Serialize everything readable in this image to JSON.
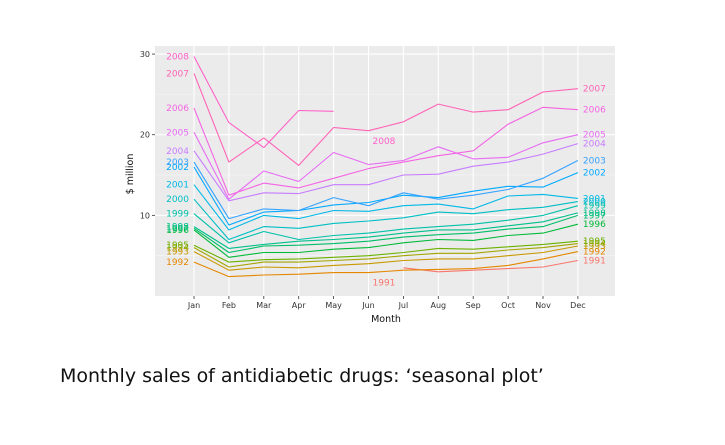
{
  "caption": "Monthly sales of antidiabetic drugs: ‘seasonal plot’",
  "chart_data": {
    "type": "line",
    "title": "",
    "xlabel": "Month",
    "ylabel": "$ million",
    "categories": [
      "Jan",
      "Feb",
      "Mar",
      "Apr",
      "May",
      "Jun",
      "Jul",
      "Aug",
      "Sep",
      "Oct",
      "Nov",
      "Dec"
    ],
    "ylim": [
      0,
      31
    ],
    "yticks": [
      10,
      20,
      30
    ],
    "grid": true,
    "background": "#ebebeb",
    "gridline_color": "#ffffff",
    "series": [
      {
        "name": "1991",
        "color": "#F8766D",
        "values": [
          null,
          null,
          null,
          null,
          null,
          null,
          3.5,
          3.0,
          3.2,
          3.4,
          3.6,
          4.4
        ],
        "left_label": "",
        "right_label": "1991",
        "mid_label": "1991",
        "mid_label_x": "Jun",
        "mid_label_y": 1.7
      },
      {
        "name": "1992",
        "color": "#E58700",
        "values": [
          4.2,
          2.4,
          2.6,
          2.7,
          2.9,
          2.9,
          3.2,
          3.3,
          3.4,
          3.8,
          4.6,
          5.5
        ],
        "left_label": "1992",
        "right_label": "1992"
      },
      {
        "name": "1993",
        "color": "#C99800",
        "values": [
          5.5,
          3.2,
          3.6,
          3.5,
          3.8,
          4.0,
          4.4,
          4.6,
          4.6,
          5.0,
          5.4,
          6.2
        ],
        "left_label": "1993",
        "right_label": "1993"
      },
      {
        "name": "1994",
        "color": "#A3A500",
        "values": [
          6.0,
          3.6,
          4.2,
          4.2,
          4.4,
          4.6,
          5.0,
          5.3,
          5.3,
          5.7,
          6.0,
          6.5
        ],
        "left_label": "1994",
        "right_label": "1994"
      },
      {
        "name": "1995",
        "color": "#6BB100",
        "values": [
          6.3,
          4.2,
          4.5,
          4.6,
          4.8,
          5.0,
          5.4,
          5.9,
          5.8,
          6.1,
          6.4,
          6.8
        ],
        "left_label": "1995",
        "right_label": "1995"
      },
      {
        "name": "1996",
        "color": "#00BA38",
        "values": [
          8.2,
          4.8,
          5.4,
          5.4,
          5.8,
          6.0,
          6.6,
          7.0,
          6.9,
          7.5,
          7.8,
          8.9
        ],
        "left_label": "1996",
        "right_label": "1996"
      },
      {
        "name": "1997",
        "color": "#00BE67",
        "values": [
          8.4,
          5.4,
          6.2,
          6.3,
          6.5,
          6.8,
          7.3,
          7.6,
          7.8,
          8.3,
          8.6,
          10.0
        ],
        "left_label": "1997",
        "right_label": "1997"
      },
      {
        "name": "1998",
        "color": "#00C08B",
        "values": [
          8.6,
          5.9,
          6.4,
          6.8,
          7.0,
          7.3,
          7.8,
          8.2,
          8.2,
          8.7,
          9.2,
          10.3
        ],
        "left_label": "1998",
        "right_label": "1998"
      },
      {
        "name": "1999",
        "color": "#00C1AA",
        "values": [
          10.2,
          6.6,
          8.0,
          7.0,
          7.5,
          7.8,
          8.3,
          8.6,
          8.9,
          9.4,
          10.0,
          11.2
        ],
        "left_label": "1999",
        "right_label": "1999"
      },
      {
        "name": "2000",
        "color": "#00BFC4",
        "values": [
          12.0,
          7.0,
          8.6,
          8.4,
          9.0,
          9.3,
          9.7,
          10.4,
          10.2,
          10.7,
          11.0,
          11.7
        ],
        "left_label": "2000",
        "right_label": "2000"
      },
      {
        "name": "2001",
        "color": "#00B8E7",
        "values": [
          13.8,
          8.2,
          10.0,
          9.6,
          10.6,
          10.5,
          11.2,
          11.4,
          10.8,
          12.4,
          12.6,
          12.1
        ],
        "left_label": "2001",
        "right_label": "2001"
      },
      {
        "name": "2002",
        "color": "#00A9FF",
        "values": [
          16.0,
          8.8,
          10.4,
          10.6,
          11.3,
          11.6,
          12.5,
          12.2,
          13.0,
          13.6,
          13.5,
          15.3
        ],
        "left_label": "2002",
        "right_label": "2002"
      },
      {
        "name": "2003",
        "color": "#35A2FF",
        "values": [
          16.6,
          9.6,
          10.8,
          10.6,
          12.2,
          11.2,
          12.8,
          12.0,
          12.5,
          13.2,
          14.6,
          16.8
        ],
        "left_label": "2003",
        "right_label": "2003"
      },
      {
        "name": "2004",
        "color": "#C77CFF",
        "values": [
          18.0,
          11.8,
          12.8,
          12.7,
          13.8,
          13.8,
          15.0,
          15.1,
          16.1,
          16.6,
          17.6,
          18.9
        ],
        "left_label": "2004",
        "right_label": "2004"
      },
      {
        "name": "2005",
        "color": "#E76BF3",
        "values": [
          20.3,
          12.0,
          15.5,
          14.2,
          17.8,
          16.3,
          16.8,
          18.5,
          17.0,
          17.2,
          19.0,
          20.0
        ],
        "left_label": "2005",
        "right_label": "2005"
      },
      {
        "name": "2006",
        "color": "#F564E3",
        "values": [
          23.3,
          12.5,
          14.0,
          13.4,
          14.6,
          15.8,
          16.6,
          17.4,
          18.0,
          21.3,
          23.4,
          23.1
        ],
        "left_label": "2006",
        "right_label": "2006"
      },
      {
        "name": "2007",
        "color": "#FF63B6",
        "values": [
          27.6,
          16.6,
          19.6,
          16.2,
          20.9,
          20.5,
          21.6,
          23.8,
          22.8,
          23.1,
          25.3,
          25.7
        ],
        "left_label": "2007",
        "right_label": "2007"
      },
      {
        "name": "2008",
        "color": "#FF61C9",
        "values": [
          29.7,
          21.5,
          18.4,
          23.0,
          22.9,
          null,
          null,
          null,
          null,
          null,
          null,
          null
        ],
        "left_label": "2008",
        "right_label": "",
        "mid_label": "2008",
        "mid_label_x": "Jun",
        "mid_label_y": 19.2
      }
    ]
  }
}
